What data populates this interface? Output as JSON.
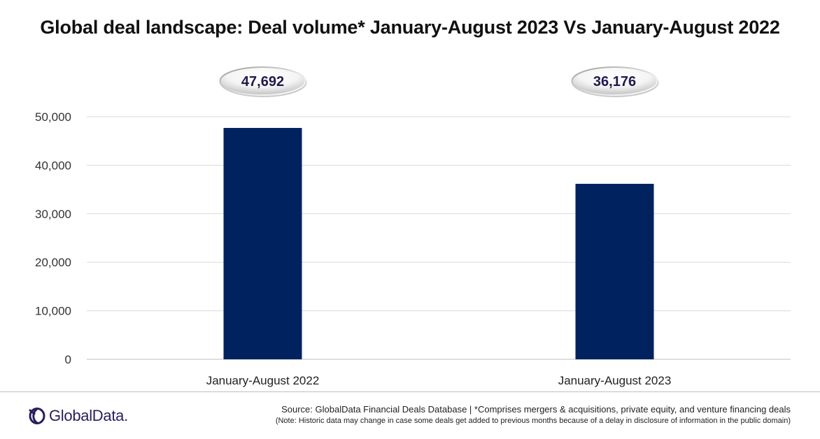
{
  "header": {
    "title": "Global deal landscape: Deal volume* January-August 2023 Vs January-August 2022"
  },
  "chart_data": {
    "type": "bar",
    "categories": [
      "January-August 2022",
      "January-August 2023"
    ],
    "values": [
      47692,
      36176
    ],
    "data_labels": [
      "47,692",
      "36,176"
    ],
    "yticks": [
      0,
      10000,
      20000,
      30000,
      40000,
      50000
    ],
    "ytick_labels": [
      "0",
      "10,000",
      "20,000",
      "30,000",
      "40,000",
      "50,000"
    ],
    "ylim": [
      0,
      50000
    ],
    "grid": true,
    "legend": "none",
    "bar_color": "#00235f"
  },
  "footer": {
    "logo_text": "GlobalData.",
    "source": "Source: GlobalData Financial Deals Database | *Comprises mergers & acquisitions, private equity, and venture financing deals",
    "note": "(Note: Historic data may change in case some deals get added to previous months because of a delay in disclosure  of information in the public domain)"
  },
  "colors": {
    "bar": "#00235f",
    "label_text": "#1f1a4d",
    "brand": "#2b1d5c"
  },
  "icons": {
    "logo": "globaldata-logo-icon"
  }
}
